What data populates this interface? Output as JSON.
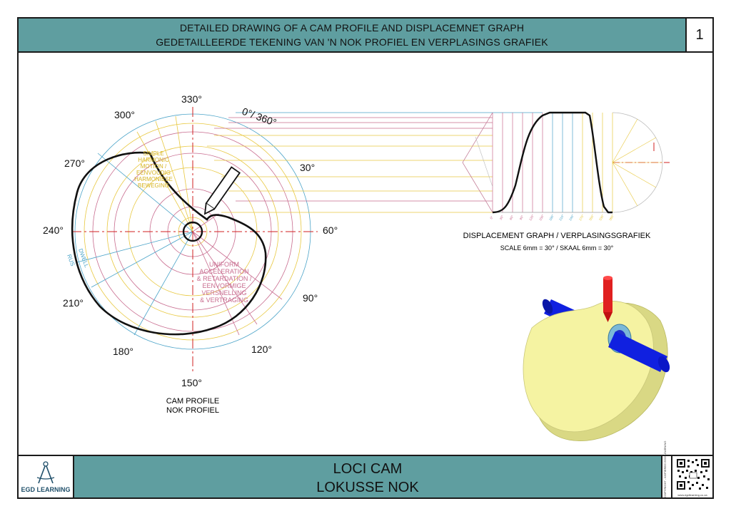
{
  "header": {
    "title_en": "DETAILED DRAWING OF A CAM PROFILE AND DISPLACEMNET GRAPH",
    "title_af": "GEDETAILLEERDE TEKENING VAN 'N NOK PROFIEL EN VERPLASINGS GRAFIEK",
    "sheet_number": "1"
  },
  "cam": {
    "angles": [
      {
        "label": "330°"
      },
      {
        "label": "0°/ 360°"
      },
      {
        "label": "30°"
      },
      {
        "label": "60°"
      },
      {
        "label": "90°"
      },
      {
        "label": "120°"
      },
      {
        "label": "150°"
      },
      {
        "label": "180°"
      },
      {
        "label": "210°"
      },
      {
        "label": "240°"
      },
      {
        "label": "270°"
      },
      {
        "label": "300°"
      }
    ],
    "shm_text": [
      "SIMPLE",
      "HARMONIC",
      "MOTION /",
      "EENVOUDIG",
      "HARMONIESE",
      "BEWEGING"
    ],
    "ua_text": [
      "UNIFORM",
      "ACCELERATION",
      "& RETARDATION /",
      "EENVORMIGE",
      "VERSNELLING",
      "& VERTRAGING"
    ],
    "dwell_text": "DWELL",
    "rus_text": "RUS",
    "caption_en": "CAM PROFILE",
    "caption_af": "NOK PROFIEL"
  },
  "graph": {
    "caption": "DISPLACEMENT GRAPH / VERPLASINGSGRAFIEK",
    "scale": "SCALE 6mm = 30° / SKAAL 6mm = 30°",
    "x_ticks": [
      "0°",
      "30°",
      "60°",
      "90°",
      "120°",
      "150°",
      "180°",
      "210°",
      "240°",
      "270°",
      "300°",
      "330°",
      "360°"
    ]
  },
  "footer": {
    "title_en": "LOCI CAM",
    "title_af": "LOKUSSE NOK",
    "logo_text": "EGD LEARNING",
    "copyright": "COPYRIGHT - KOPIEREG EGD LEARNING",
    "url": "www.egdlearning.co.za"
  },
  "colors": {
    "teal": "#5f9ea0",
    "yellow": "#e8c840",
    "pink": "#c86b8e",
    "blue": "#4aa3c8",
    "centerline": "#d02020",
    "cam_face": "#f4f2a0",
    "shaft": "#1020e0",
    "follower": "#e02020"
  }
}
